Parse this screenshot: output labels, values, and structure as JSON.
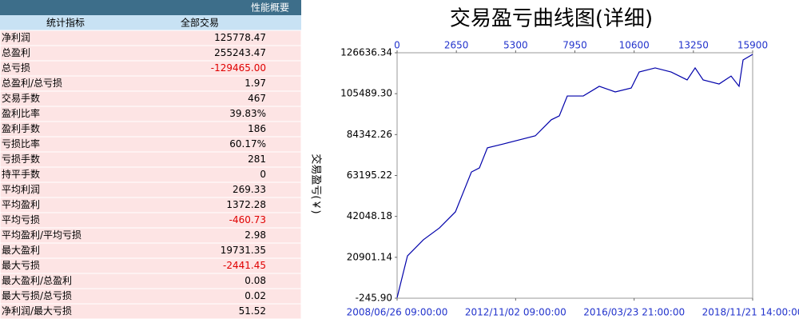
{
  "table": {
    "title": "性能概要",
    "headers": [
      "统计指标",
      "全部交易"
    ],
    "rows": [
      [
        "净利润",
        "125778.47"
      ],
      [
        "总盈利",
        "255243.47"
      ],
      [
        "总亏损",
        "-129465.00"
      ],
      [
        "总盈利/总亏损",
        "1.97"
      ],
      [
        "交易手数",
        "467"
      ],
      [
        "盈利比率",
        "39.83%"
      ],
      [
        "盈利手数",
        "186"
      ],
      [
        "亏损比率",
        "60.17%"
      ],
      [
        "亏损手数",
        "281"
      ],
      [
        "持平手数",
        "0"
      ],
      [
        "平均利润",
        "269.33"
      ],
      [
        "平均盈利",
        "1372.28"
      ],
      [
        "平均亏损",
        "-460.73"
      ],
      [
        "平均盈利/平均亏损",
        "2.98"
      ],
      [
        "最大盈利",
        "19731.35"
      ],
      [
        "最大亏损",
        "-2441.45"
      ],
      [
        "最大盈利/总盈利",
        "0.08"
      ],
      [
        "最大亏损/总亏损",
        "0.02"
      ],
      [
        "净利润/最大亏损",
        "51.52"
      ]
    ]
  },
  "chart_data": {
    "type": "line",
    "title": "交易盈亏曲线图(详细)",
    "y_label": "交易盈亏(￥)",
    "color": "#0000aa",
    "x": [
      0,
      286,
      464,
      1179,
      1894,
      2608,
      2966,
      3323,
      3680,
      4038,
      4752,
      5467,
      6181,
      6896,
      7253,
      7611,
      8325,
      9040,
      9754,
      10469,
      10826,
      11541,
      12255,
      12970,
      13327,
      13685,
      14399,
      14935,
      15292,
      15471,
      15900
    ],
    "values": [
      0,
      13400,
      21650,
      30000,
      36100,
      44400,
      54700,
      65000,
      67100,
      77500,
      79500,
      81600,
      83700,
      92000,
      94000,
      104300,
      104300,
      109300,
      106400,
      108400,
      116700,
      118800,
      116700,
      112600,
      118800,
      112600,
      110500,
      114600,
      109300,
      122900,
      125800
    ],
    "xlim": [
      0,
      15900
    ],
    "xticks": [
      0,
      2650,
      5300,
      7950,
      10600,
      13250,
      15900
    ],
    "x2ticks": [
      {
        "value": 0,
        "label": "2008/06/26 09:00:00"
      },
      {
        "value": 5300,
        "label": "2012/11/02 09:00:00"
      },
      {
        "value": 10600,
        "label": "2016/03/23 21:00:00"
      },
      {
        "value": 15900,
        "label": "2018/11/21 14:00:00"
      }
    ],
    "ylim": [
      -245.9,
      126636.34
    ],
    "yticks": [
      {
        "value": -245.9,
        "label": "-245.90"
      },
      20901.14,
      42048.18,
      63195.22,
      84342.26,
      {
        "value": 105489.3,
        "label": "105489.30"
      },
      126636.34
    ]
  }
}
